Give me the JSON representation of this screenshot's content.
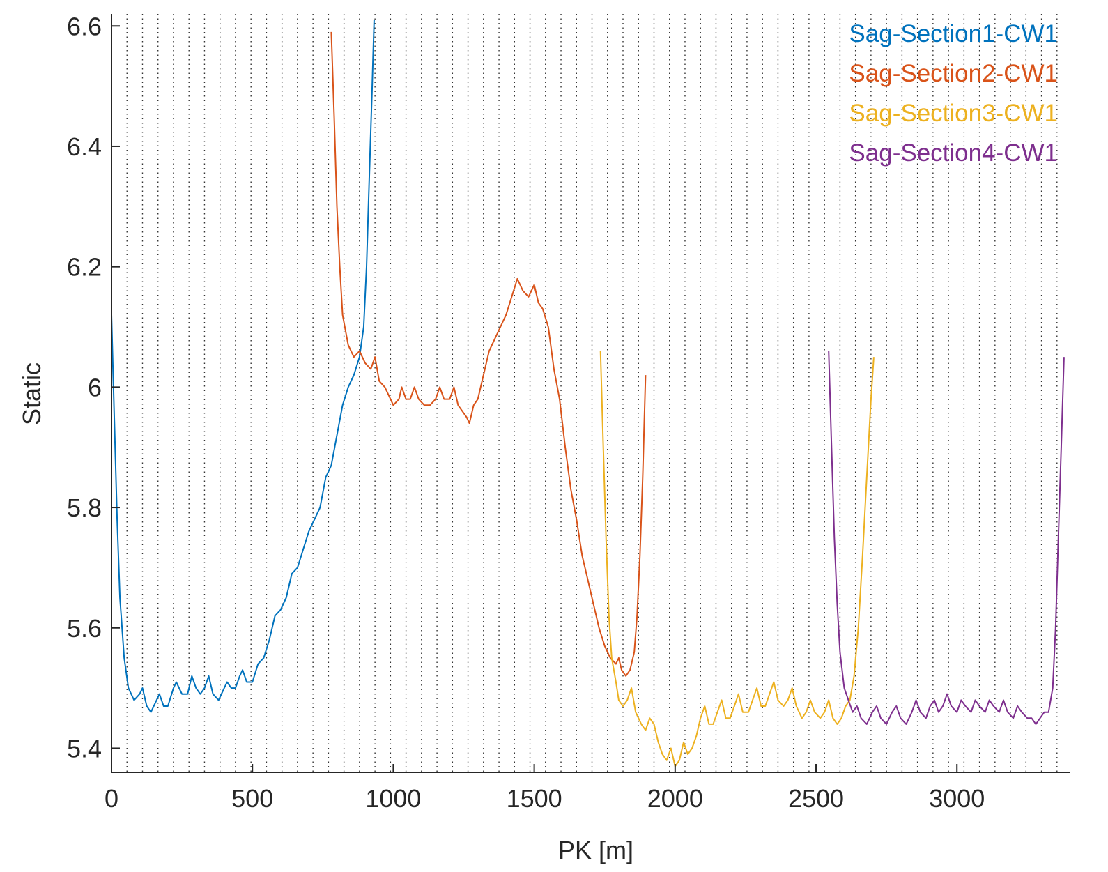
{
  "chart_data": {
    "type": "line",
    "xlabel": "PK [m]",
    "ylabel": "Static",
    "xlim": [
      0,
      3400
    ],
    "ylim": [
      5.36,
      6.62
    ],
    "xticks": [
      0,
      500,
      1000,
      1500,
      2000,
      2500,
      3000
    ],
    "yticks": [
      5.4,
      5.6,
      5.8,
      6.0,
      6.2,
      6.4,
      6.6
    ],
    "xtick_labels": [
      "0",
      "500",
      "1000",
      "1500",
      "2000",
      "2500",
      "3000"
    ],
    "ytick_labels": [
      "5.4",
      "5.6",
      "5.8",
      "6",
      "6.2",
      "6.4",
      "6.6"
    ],
    "grid": "vertical dotted lines every ~55 m",
    "legend_position": "top-right",
    "series": [
      {
        "name": "Sag-Section1-CW1",
        "color": "#0072BD",
        "points": [
          [
            0,
            6.12
          ],
          [
            10,
            5.95
          ],
          [
            20,
            5.78
          ],
          [
            30,
            5.65
          ],
          [
            45,
            5.55
          ],
          [
            60,
            5.5
          ],
          [
            80,
            5.48
          ],
          [
            100,
            5.49
          ],
          [
            110,
            5.5
          ],
          [
            125,
            5.47
          ],
          [
            140,
            5.46
          ],
          [
            160,
            5.48
          ],
          [
            170,
            5.49
          ],
          [
            185,
            5.47
          ],
          [
            200,
            5.47
          ],
          [
            220,
            5.5
          ],
          [
            230,
            5.51
          ],
          [
            250,
            5.49
          ],
          [
            270,
            5.49
          ],
          [
            285,
            5.52
          ],
          [
            300,
            5.5
          ],
          [
            315,
            5.49
          ],
          [
            330,
            5.5
          ],
          [
            345,
            5.52
          ],
          [
            360,
            5.49
          ],
          [
            380,
            5.48
          ],
          [
            400,
            5.5
          ],
          [
            410,
            5.51
          ],
          [
            425,
            5.5
          ],
          [
            440,
            5.5
          ],
          [
            455,
            5.52
          ],
          [
            465,
            5.53
          ],
          [
            480,
            5.51
          ],
          [
            500,
            5.51
          ],
          [
            520,
            5.54
          ],
          [
            540,
            5.55
          ],
          [
            560,
            5.58
          ],
          [
            580,
            5.62
          ],
          [
            600,
            5.63
          ],
          [
            620,
            5.65
          ],
          [
            640,
            5.69
          ],
          [
            660,
            5.7
          ],
          [
            680,
            5.73
          ],
          [
            700,
            5.76
          ],
          [
            720,
            5.78
          ],
          [
            740,
            5.8
          ],
          [
            760,
            5.85
          ],
          [
            780,
            5.87
          ],
          [
            800,
            5.92
          ],
          [
            820,
            5.97
          ],
          [
            840,
            6.0
          ],
          [
            860,
            6.02
          ],
          [
            880,
            6.05
          ],
          [
            895,
            6.1
          ],
          [
            905,
            6.2
          ],
          [
            915,
            6.35
          ],
          [
            925,
            6.5
          ],
          [
            932,
            6.61
          ]
        ]
      },
      {
        "name": "Sag-Section2-CW1",
        "color": "#D95319",
        "points": [
          [
            780,
            6.59
          ],
          [
            790,
            6.45
          ],
          [
            800,
            6.3
          ],
          [
            810,
            6.2
          ],
          [
            820,
            6.12
          ],
          [
            840,
            6.07
          ],
          [
            860,
            6.05
          ],
          [
            880,
            6.06
          ],
          [
            900,
            6.04
          ],
          [
            920,
            6.03
          ],
          [
            935,
            6.05
          ],
          [
            950,
            6.01
          ],
          [
            970,
            6.0
          ],
          [
            990,
            5.98
          ],
          [
            1000,
            5.97
          ],
          [
            1020,
            5.98
          ],
          [
            1030,
            6.0
          ],
          [
            1045,
            5.98
          ],
          [
            1060,
            5.98
          ],
          [
            1075,
            6.0
          ],
          [
            1090,
            5.98
          ],
          [
            1110,
            5.97
          ],
          [
            1130,
            5.97
          ],
          [
            1150,
            5.98
          ],
          [
            1165,
            6.0
          ],
          [
            1180,
            5.98
          ],
          [
            1200,
            5.98
          ],
          [
            1215,
            6.0
          ],
          [
            1230,
            5.97
          ],
          [
            1245,
            5.96
          ],
          [
            1260,
            5.95
          ],
          [
            1270,
            5.94
          ],
          [
            1285,
            5.97
          ],
          [
            1300,
            5.98
          ],
          [
            1320,
            6.02
          ],
          [
            1340,
            6.06
          ],
          [
            1360,
            6.08
          ],
          [
            1380,
            6.1
          ],
          [
            1400,
            6.12
          ],
          [
            1420,
            6.15
          ],
          [
            1440,
            6.18
          ],
          [
            1460,
            6.16
          ],
          [
            1480,
            6.15
          ],
          [
            1500,
            6.17
          ],
          [
            1515,
            6.14
          ],
          [
            1530,
            6.13
          ],
          [
            1550,
            6.1
          ],
          [
            1570,
            6.03
          ],
          [
            1590,
            5.98
          ],
          [
            1610,
            5.9
          ],
          [
            1630,
            5.83
          ],
          [
            1650,
            5.78
          ],
          [
            1670,
            5.72
          ],
          [
            1690,
            5.68
          ],
          [
            1710,
            5.64
          ],
          [
            1730,
            5.6
          ],
          [
            1750,
            5.57
          ],
          [
            1770,
            5.55
          ],
          [
            1790,
            5.54
          ],
          [
            1800,
            5.55
          ],
          [
            1810,
            5.53
          ],
          [
            1825,
            5.52
          ],
          [
            1840,
            5.53
          ],
          [
            1855,
            5.56
          ],
          [
            1865,
            5.62
          ],
          [
            1875,
            5.72
          ],
          [
            1885,
            5.85
          ],
          [
            1895,
            6.02
          ]
        ]
      },
      {
        "name": "Sag-Section3-CW1",
        "color": "#EDB120",
        "points": [
          [
            1735,
            6.06
          ],
          [
            1745,
            5.9
          ],
          [
            1755,
            5.75
          ],
          [
            1765,
            5.62
          ],
          [
            1775,
            5.55
          ],
          [
            1790,
            5.51
          ],
          [
            1800,
            5.48
          ],
          [
            1815,
            5.47
          ],
          [
            1830,
            5.48
          ],
          [
            1845,
            5.5
          ],
          [
            1860,
            5.46
          ],
          [
            1880,
            5.44
          ],
          [
            1895,
            5.43
          ],
          [
            1910,
            5.45
          ],
          [
            1925,
            5.44
          ],
          [
            1940,
            5.41
          ],
          [
            1955,
            5.39
          ],
          [
            1970,
            5.38
          ],
          [
            1985,
            5.4
          ],
          [
            2000,
            5.37
          ],
          [
            2015,
            5.38
          ],
          [
            2030,
            5.41
          ],
          [
            2045,
            5.39
          ],
          [
            2060,
            5.4
          ],
          [
            2075,
            5.42
          ],
          [
            2090,
            5.45
          ],
          [
            2105,
            5.47
          ],
          [
            2120,
            5.44
          ],
          [
            2135,
            5.44
          ],
          [
            2150,
            5.46
          ],
          [
            2165,
            5.48
          ],
          [
            2180,
            5.45
          ],
          [
            2195,
            5.45
          ],
          [
            2210,
            5.47
          ],
          [
            2225,
            5.49
          ],
          [
            2240,
            5.46
          ],
          [
            2260,
            5.46
          ],
          [
            2275,
            5.48
          ],
          [
            2290,
            5.5
          ],
          [
            2305,
            5.47
          ],
          [
            2320,
            5.47
          ],
          [
            2335,
            5.49
          ],
          [
            2350,
            5.51
          ],
          [
            2365,
            5.48
          ],
          [
            2385,
            5.47
          ],
          [
            2400,
            5.48
          ],
          [
            2415,
            5.5
          ],
          [
            2430,
            5.47
          ],
          [
            2450,
            5.45
          ],
          [
            2465,
            5.46
          ],
          [
            2480,
            5.48
          ],
          [
            2495,
            5.46
          ],
          [
            2515,
            5.45
          ],
          [
            2530,
            5.46
          ],
          [
            2545,
            5.48
          ],
          [
            2560,
            5.45
          ],
          [
            2575,
            5.44
          ],
          [
            2590,
            5.45
          ],
          [
            2605,
            5.47
          ],
          [
            2620,
            5.48
          ],
          [
            2635,
            5.52
          ],
          [
            2650,
            5.6
          ],
          [
            2665,
            5.72
          ],
          [
            2680,
            5.85
          ],
          [
            2695,
            5.98
          ],
          [
            2705,
            6.05
          ]
        ]
      },
      {
        "name": "Sag-Section4-CW1",
        "color": "#7E2F8E",
        "points": [
          [
            2545,
            6.06
          ],
          [
            2555,
            5.9
          ],
          [
            2565,
            5.75
          ],
          [
            2575,
            5.64
          ],
          [
            2585,
            5.56
          ],
          [
            2600,
            5.5
          ],
          [
            2615,
            5.48
          ],
          [
            2630,
            5.46
          ],
          [
            2645,
            5.47
          ],
          [
            2660,
            5.45
          ],
          [
            2680,
            5.44
          ],
          [
            2700,
            5.46
          ],
          [
            2715,
            5.47
          ],
          [
            2730,
            5.45
          ],
          [
            2750,
            5.44
          ],
          [
            2770,
            5.46
          ],
          [
            2785,
            5.47
          ],
          [
            2800,
            5.45
          ],
          [
            2820,
            5.44
          ],
          [
            2840,
            5.46
          ],
          [
            2855,
            5.48
          ],
          [
            2870,
            5.46
          ],
          [
            2890,
            5.45
          ],
          [
            2905,
            5.47
          ],
          [
            2920,
            5.48
          ],
          [
            2935,
            5.46
          ],
          [
            2950,
            5.47
          ],
          [
            2965,
            5.49
          ],
          [
            2980,
            5.47
          ],
          [
            3000,
            5.46
          ],
          [
            3015,
            5.48
          ],
          [
            3030,
            5.47
          ],
          [
            3050,
            5.46
          ],
          [
            3065,
            5.48
          ],
          [
            3080,
            5.47
          ],
          [
            3100,
            5.46
          ],
          [
            3115,
            5.48
          ],
          [
            3130,
            5.47
          ],
          [
            3150,
            5.46
          ],
          [
            3165,
            5.48
          ],
          [
            3180,
            5.46
          ],
          [
            3200,
            5.45
          ],
          [
            3215,
            5.47
          ],
          [
            3230,
            5.46
          ],
          [
            3250,
            5.45
          ],
          [
            3265,
            5.45
          ],
          [
            3280,
            5.44
          ],
          [
            3295,
            5.45
          ],
          [
            3310,
            5.46
          ],
          [
            3325,
            5.46
          ],
          [
            3340,
            5.5
          ],
          [
            3350,
            5.6
          ],
          [
            3360,
            5.75
          ],
          [
            3370,
            5.9
          ],
          [
            3380,
            6.05
          ]
        ]
      }
    ]
  }
}
